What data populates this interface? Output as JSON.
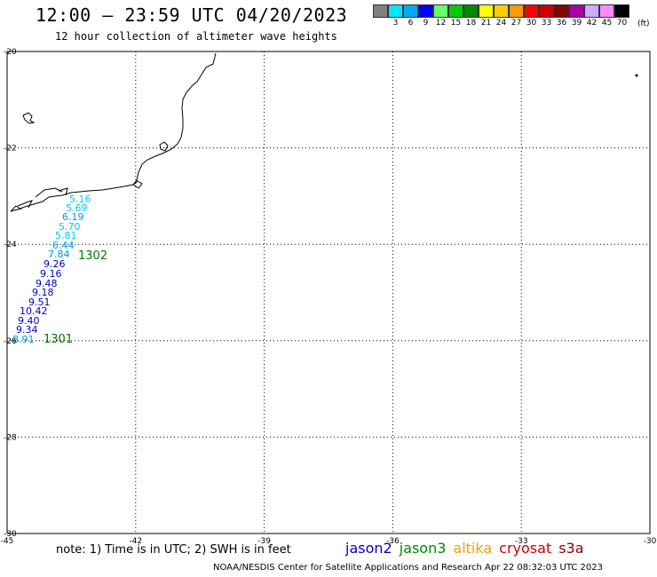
{
  "header": {
    "title": "12:00 – 23:59 UTC 04/20/2023",
    "subtitle": "12 hour collection of altimeter wave heights"
  },
  "colorbar": {
    "unit": "(ft)",
    "colors": [
      "#808080",
      "#00e6ff",
      "#00aaff",
      "#0000ff",
      "#66ff66",
      "#00cc00",
      "#008800",
      "#ffff00",
      "#ffcc00",
      "#ff9900",
      "#ff0000",
      "#cc0000",
      "#880000",
      "#aa00aa",
      "#ccaaff",
      "#ff88ff",
      "#000000"
    ],
    "labels": [
      "",
      "3",
      "6",
      "9",
      "12",
      "15",
      "18",
      "21",
      "24",
      "27",
      "30",
      "33",
      "36",
      "39",
      "42",
      "45",
      "70"
    ]
  },
  "axes": {
    "lon_ticks": [
      "-45",
      "-42",
      "-39",
      "-36",
      "-33",
      "-30"
    ],
    "lat_ticks": [
      "-20",
      "-22",
      "-24",
      "-26",
      "-28",
      "-30"
    ]
  },
  "observations": [
    {
      "value": "5.16",
      "color": "#00ccee"
    },
    {
      "value": "5.69",
      "color": "#00ccee"
    },
    {
      "value": "6.19",
      "color": "#0099dd"
    },
    {
      "value": "5.70",
      "color": "#00ccee"
    },
    {
      "value": "5.81",
      "color": "#00ccee"
    },
    {
      "value": "6.44",
      "color": "#0099dd"
    },
    {
      "value": "7.84",
      "color": "#0099dd"
    },
    {
      "value": "9.26",
      "color": "#0000cc"
    },
    {
      "value": "9.16",
      "color": "#0000cc"
    },
    {
      "value": "9.48",
      "color": "#0000cc"
    },
    {
      "value": "9.18",
      "color": "#0000cc"
    },
    {
      "value": "9.51",
      "color": "#0000cc"
    },
    {
      "value": "10.42",
      "color": "#0000cc"
    },
    {
      "value": "9.40",
      "color": "#0000cc"
    },
    {
      "value": "9.34",
      "color": "#0000cc"
    },
    {
      "value": "8.91",
      "color": "#0099dd"
    }
  ],
  "passes": [
    "1302",
    "1301"
  ],
  "note": "note: 1) Time is in UTC; 2) SWH is in feet",
  "satellites": [
    {
      "name": "jason2",
      "color": "#0000cc"
    },
    {
      "name": "jason3",
      "color": "#008800"
    },
    {
      "name": "altika",
      "color": "#ff9900"
    },
    {
      "name": "cryosat",
      "color": "#cc0000"
    },
    {
      "name": "s3a",
      "color": "#880000"
    }
  ],
  "footer": "NOAA/NESDIS Center for Satellite Applications and Research   Apr 22 08:32:03 UTC 2023"
}
